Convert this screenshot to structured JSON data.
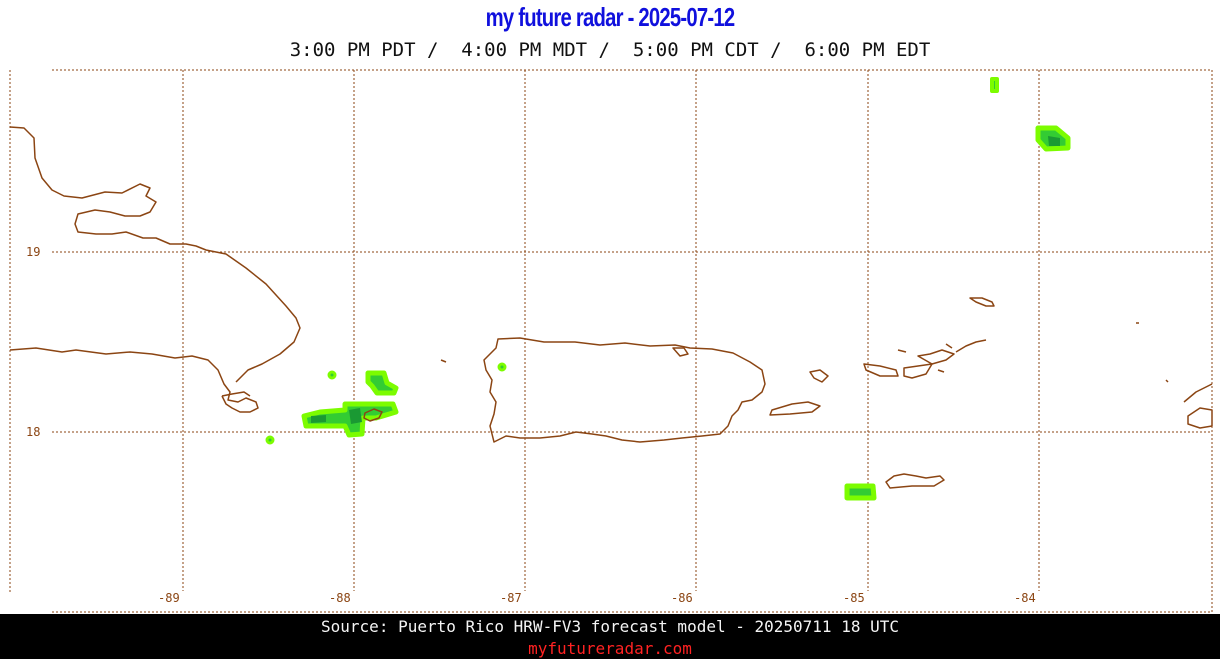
{
  "header": {
    "title": "my future radar - 2025-07-12",
    "times": "3:00 PM PDT /  4:00 PM MDT /  5:00 PM CDT /  6:00 PM EDT"
  },
  "map": {
    "lon_labels": [
      "-89",
      "-88",
      "-87",
      "-86",
      "-85",
      "-84"
    ],
    "lat_labels": [
      "19",
      "18"
    ],
    "colors": {
      "coast": "#8b4513",
      "grid": "#8b4513",
      "radar_light": "#7cfc00",
      "radar_mid": "#33cc33",
      "radar_dark": "#1a9933"
    }
  },
  "footer": {
    "source": "Source: Puerto Rico HRW-FV3 forecast model - 20250711 18 UTC",
    "site": "myfutureradar.com"
  }
}
